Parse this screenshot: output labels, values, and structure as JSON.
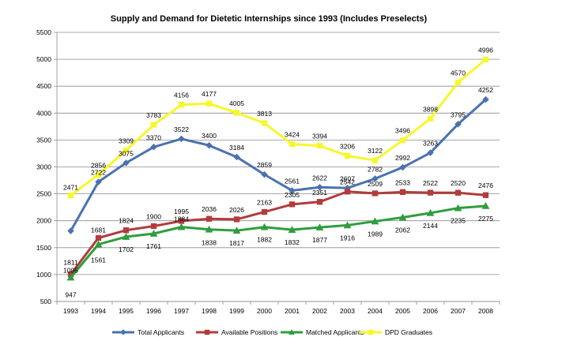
{
  "chart_data": {
    "type": "line",
    "title": "Supply and Demand for Dietetic Internships since 1993 (Includes Preselects)",
    "categories": [
      "1993",
      "1994",
      "1995",
      "1996",
      "1997",
      "1998",
      "1999",
      "2000",
      "2001",
      "2002",
      "2003",
      "2004",
      "2005",
      "2006",
      "2007",
      "2008"
    ],
    "ylim": [
      500,
      5500
    ],
    "yticks": [
      500,
      1000,
      1500,
      2000,
      2500,
      3000,
      3500,
      4000,
      4500,
      5000,
      5500
    ],
    "grid": "horizontal",
    "legend_position": "bottom",
    "series": [
      {
        "name": "Total Applicants",
        "color": "#4a72b0",
        "marker": "diamond",
        "values": [
          1811,
          2722,
          3075,
          3370,
          3522,
          3400,
          3184,
          2859,
          2561,
          2622,
          2607,
          2782,
          2992,
          3263,
          3795,
          4252
        ],
        "labels": [
          "1811",
          "2722",
          "3075",
          "3370",
          "3522",
          "3400",
          "3184",
          "2859",
          "2561",
          "2622",
          "2607",
          "2782",
          "2992",
          "3263",
          "3795",
          "4252"
        ]
      },
      {
        "name": "Available Positions",
        "color": "#b23b3b",
        "marker": "square",
        "values": [
          1005,
          1681,
          1824,
          1900,
          1995,
          2036,
          2026,
          2163,
          2305,
          2351,
          2542,
          2509,
          2533,
          2522,
          2520,
          2476
        ],
        "labels": [
          "1005",
          "1681",
          "1824",
          "1900",
          "1995",
          "2036",
          "2026",
          "2163",
          "2305",
          "2351",
          "2542",
          "2509",
          "2533",
          "2522",
          "2520",
          "2476"
        ]
      },
      {
        "name": "Matched Applicants",
        "color": "#2e9e3e",
        "marker": "triangle",
        "values": [
          947,
          1561,
          1702,
          1761,
          1884,
          1838,
          1817,
          1882,
          1832,
          1877,
          1916,
          1989,
          2062,
          2144,
          2235,
          2275
        ],
        "labels": [
          "947",
          "1561",
          "1702",
          "1761",
          "1884",
          "1838",
          "1817",
          "1882",
          "1832",
          "1877",
          "1916",
          "1989",
          "2062",
          "2144",
          "2235",
          "2275"
        ]
      },
      {
        "name": "DPD Graduates",
        "color": "#f7f72a",
        "marker": "square",
        "values": [
          2471,
          2856,
          3309,
          3783,
          4156,
          4177,
          4005,
          3813,
          3424,
          3394,
          3206,
          3122,
          3496,
          3898,
          4570,
          4996
        ],
        "labels": [
          "2471",
          "2856",
          "3309",
          "3783",
          "4156",
          "4177",
          "4005",
          "3813",
          "3424",
          "3394",
          "3206",
          "3122",
          "3496",
          "3898",
          "4570",
          "4996"
        ]
      }
    ]
  }
}
